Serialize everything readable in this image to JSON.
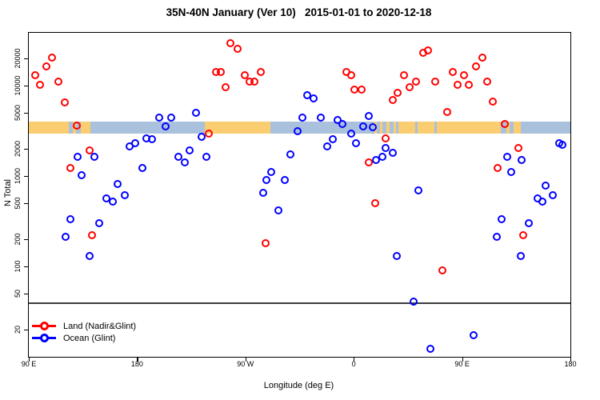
{
  "title": "35N-40N January (Ver 10)   2015-01-01 to 2020-12-18",
  "chart_data": {
    "type": "scatter",
    "title": "35N-40N January (Ver 10)   2015-01-01 to 2020-12-18",
    "xlabel": "Longitude (deg E)",
    "ylabel": "N Total",
    "x_axis": {
      "range": [
        90,
        540
      ],
      "ticks": [
        {
          "value": 90,
          "label": "90 E"
        },
        {
          "value": 180,
          "label": "180"
        },
        {
          "value": 270,
          "label": "90 W"
        },
        {
          "value": 360,
          "label": "0"
        },
        {
          "value": 450,
          "label": "90 E"
        },
        {
          "value": 540,
          "label": "180"
        }
      ]
    },
    "y_axis": {
      "scale": "log",
      "range": [
        12,
        38000
      ],
      "ticks": [
        20,
        50,
        100,
        200,
        500,
        1000,
        2000,
        5000,
        10000,
        20000
      ]
    },
    "reference_line": {
      "value": 40,
      "color": "#3c3c3c"
    },
    "surface_band": {
      "value_range": [
        3000,
        4000
      ],
      "colors": {
        "land": "#FACD70",
        "ocean": "#A9C1DC"
      },
      "segments": [
        {
          "from": 90,
          "to": 123,
          "type": "land"
        },
        {
          "from": 123,
          "to": 126.5,
          "type": "ocean"
        },
        {
          "from": 126.5,
          "to": 129.5,
          "type": "land"
        },
        {
          "from": 129.5,
          "to": 133,
          "type": "ocean"
        },
        {
          "from": 133,
          "to": 141,
          "type": "land"
        },
        {
          "from": 141,
          "to": 236,
          "type": "ocean"
        },
        {
          "from": 236,
          "to": 291,
          "type": "land"
        },
        {
          "from": 291,
          "to": 377,
          "type": "ocean"
        },
        {
          "from": 377,
          "to": 379,
          "type": "land"
        },
        {
          "from": 379,
          "to": 382,
          "type": "ocean"
        },
        {
          "from": 382,
          "to": 384,
          "type": "land"
        },
        {
          "from": 384,
          "to": 387,
          "type": "ocean"
        },
        {
          "from": 387,
          "to": 390,
          "type": "land"
        },
        {
          "from": 390,
          "to": 393,
          "type": "ocean"
        },
        {
          "from": 393,
          "to": 395,
          "type": "land"
        },
        {
          "from": 395,
          "to": 397,
          "type": "ocean"
        },
        {
          "from": 397,
          "to": 411,
          "type": "land"
        },
        {
          "from": 411,
          "to": 413,
          "type": "ocean"
        },
        {
          "from": 413,
          "to": 427,
          "type": "land"
        },
        {
          "from": 427,
          "to": 429,
          "type": "ocean"
        },
        {
          "from": 429,
          "to": 482,
          "type": "land"
        },
        {
          "from": 482,
          "to": 486.5,
          "type": "ocean"
        },
        {
          "from": 486.5,
          "to": 489.5,
          "type": "land"
        },
        {
          "from": 489.5,
          "to": 493,
          "type": "ocean"
        },
        {
          "from": 493,
          "to": 499,
          "type": "land"
        },
        {
          "from": 499,
          "to": 540,
          "type": "ocean"
        }
      ]
    },
    "series": [
      {
        "name": "Land (Nadir&Glint)",
        "color": "#FF0000",
        "points": [
          [
            96,
            13000
          ],
          [
            100,
            10000
          ],
          [
            105,
            16000
          ],
          [
            110,
            20000
          ],
          [
            115,
            11000
          ],
          [
            120,
            6400
          ],
          [
            125,
            1200
          ],
          [
            130,
            3600
          ],
          [
            141,
            1900
          ],
          [
            143,
            220
          ],
          [
            240,
            2900
          ],
          [
            246,
            14000
          ],
          [
            250,
            14000
          ],
          [
            254,
            9400
          ],
          [
            258,
            29000
          ],
          [
            264,
            25000
          ],
          [
            270,
            13000
          ],
          [
            274,
            11000
          ],
          [
            278,
            11000
          ],
          [
            283,
            14000
          ],
          [
            287,
            180
          ],
          [
            354,
            14000
          ],
          [
            358,
            13000
          ],
          [
            361,
            8900
          ],
          [
            367,
            8900
          ],
          [
            373,
            1400
          ],
          [
            378,
            490
          ],
          [
            387,
            2600
          ],
          [
            393,
            6900
          ],
          [
            397,
            8200
          ],
          [
            402,
            13000
          ],
          [
            407,
            9400
          ],
          [
            412,
            11000
          ],
          [
            418,
            23000
          ],
          [
            422,
            24000
          ],
          [
            428,
            11000
          ],
          [
            434,
            90
          ],
          [
            438,
            5000
          ],
          [
            443,
            14000
          ],
          [
            447,
            10000
          ],
          [
            452,
            13000
          ],
          [
            456,
            10000
          ],
          [
            462,
            16000
          ],
          [
            467,
            20000
          ],
          [
            471,
            11000
          ],
          [
            476,
            6600
          ],
          [
            480,
            1200
          ],
          [
            486,
            3700
          ],
          [
            497,
            2000
          ],
          [
            501,
            220
          ]
        ]
      },
      {
        "name": "Ocean (Glint)",
        "color": "#0000FF",
        "points": [
          [
            121,
            210
          ],
          [
            125,
            330
          ],
          [
            131,
            1600
          ],
          [
            134,
            1000
          ],
          [
            141,
            130
          ],
          [
            145,
            1600
          ],
          [
            149,
            300
          ],
          [
            155,
            560
          ],
          [
            160,
            510
          ],
          [
            164,
            800
          ],
          [
            170,
            600
          ],
          [
            174,
            2100
          ],
          [
            179,
            2300
          ],
          [
            185,
            1200
          ],
          [
            188,
            2600
          ],
          [
            193,
            2500
          ],
          [
            199,
            4400
          ],
          [
            204,
            3500
          ],
          [
            209,
            4400
          ],
          [
            215,
            1600
          ],
          [
            220,
            1400
          ],
          [
            224,
            1900
          ],
          [
            229,
            4900
          ],
          [
            234,
            2700
          ],
          [
            238,
            1600
          ],
          [
            285,
            650
          ],
          [
            288,
            900
          ],
          [
            292,
            1100
          ],
          [
            298,
            410
          ],
          [
            303,
            900
          ],
          [
            308,
            1700
          ],
          [
            314,
            3100
          ],
          [
            318,
            4400
          ],
          [
            322,
            7800
          ],
          [
            327,
            7200
          ],
          [
            333,
            4400
          ],
          [
            338,
            2100
          ],
          [
            343,
            2500
          ],
          [
            347,
            4100
          ],
          [
            351,
            3700
          ],
          [
            358,
            2900
          ],
          [
            362,
            2300
          ],
          [
            368,
            3500
          ],
          [
            373,
            4600
          ],
          [
            376,
            3400
          ],
          [
            379,
            1500
          ],
          [
            384,
            1600
          ],
          [
            387,
            2000
          ],
          [
            393,
            1800
          ],
          [
            396,
            130
          ],
          [
            410,
            40
          ],
          [
            414,
            680
          ],
          [
            424,
            12
          ],
          [
            460,
            17
          ],
          [
            479,
            210
          ],
          [
            483,
            330
          ],
          [
            488,
            1600
          ],
          [
            491,
            1100
          ],
          [
            499,
            130
          ],
          [
            500,
            1500
          ],
          [
            506,
            300
          ],
          [
            513,
            560
          ],
          [
            517,
            510
          ],
          [
            520,
            780
          ],
          [
            526,
            610
          ],
          [
            531,
            2300
          ],
          [
            534,
            2200
          ]
        ]
      }
    ],
    "legend": {
      "position": "bottom-left"
    }
  }
}
